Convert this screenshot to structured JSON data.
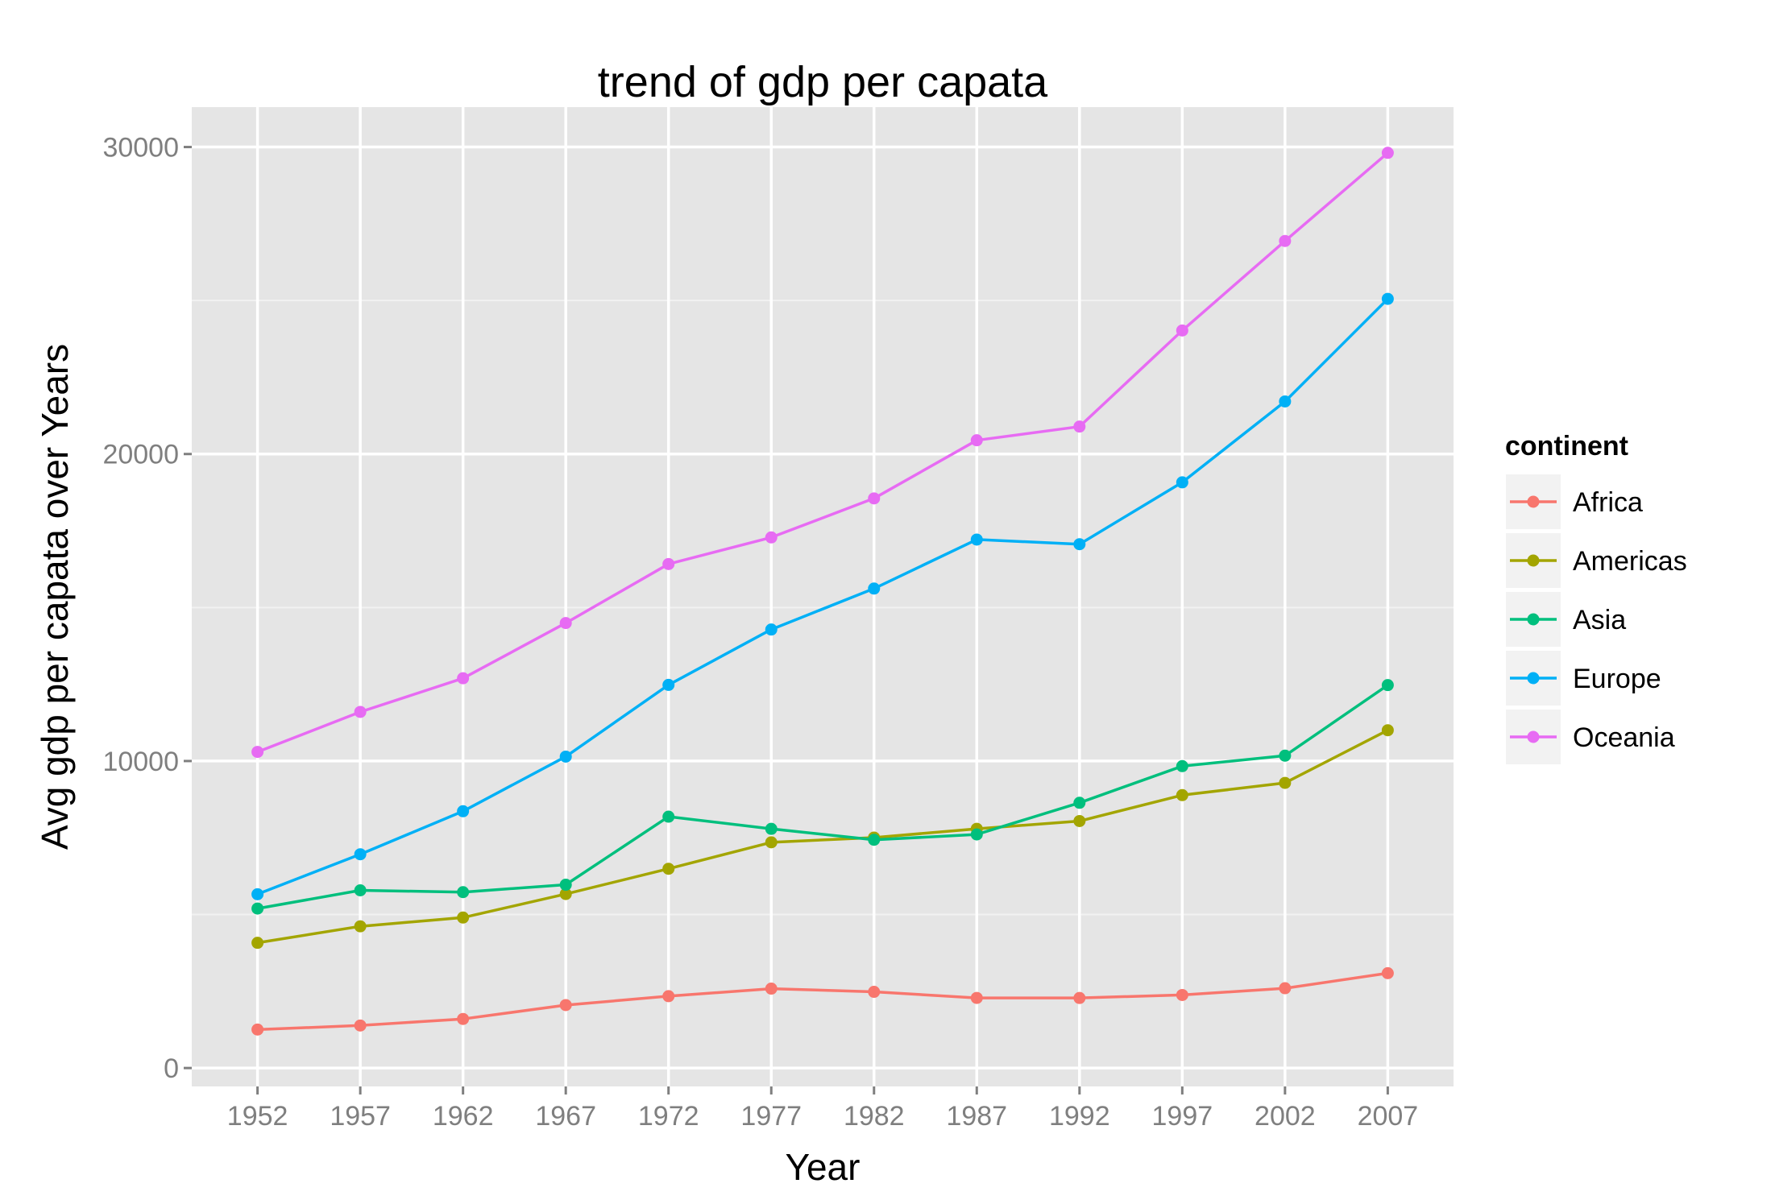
{
  "chart_data": {
    "type": "line",
    "title": "trend of gdp per capata",
    "xlabel": "Year",
    "ylabel": "Avg gdp per capata over Years",
    "x": [
      1952,
      1957,
      1962,
      1967,
      1972,
      1977,
      1982,
      1987,
      1992,
      1997,
      2002,
      2007
    ],
    "x_tick_labels": [
      "1952",
      "1957",
      "1962",
      "1967",
      "1972",
      "1977",
      "1982",
      "1987",
      "1992",
      "1997",
      "2002",
      "2007"
    ],
    "y_ticks": [
      0,
      10000,
      20000,
      30000
    ],
    "y_tick_labels": [
      "0",
      "10000",
      "20000",
      "30000"
    ],
    "ylim": [
      -600,
      31300
    ],
    "grid": true,
    "markers": true,
    "legend": {
      "title": "continent",
      "placement": "right"
    },
    "series": [
      {
        "name": "Africa",
        "color": "#F8766D",
        "values": [
          1253,
          1385,
          1598,
          2050,
          2340,
          2586,
          2482,
          2283,
          2282,
          2379,
          2599,
          3089
        ]
      },
      {
        "name": "Americas",
        "color": "#A3A500",
        "values": [
          4079,
          4616,
          4902,
          5668,
          6491,
          7352,
          7507,
          7793,
          8045,
          8889,
          9288,
          11003
        ]
      },
      {
        "name": "Asia",
        "color": "#00BF7D",
        "values": [
          5195,
          5788,
          5729,
          5971,
          8187,
          7791,
          7434,
          7608,
          8640,
          9834,
          10174,
          12473
        ]
      },
      {
        "name": "Europe",
        "color": "#00B0F6",
        "values": [
          5661,
          6963,
          8365,
          10144,
          12480,
          14284,
          15618,
          17214,
          17062,
          19077,
          21712,
          25054
        ]
      },
      {
        "name": "Oceania",
        "color": "#E76BF3",
        "values": [
          10298,
          11599,
          12696,
          14495,
          16417,
          17284,
          18555,
          20448,
          20894,
          24024,
          26939,
          29810
        ]
      }
    ]
  }
}
